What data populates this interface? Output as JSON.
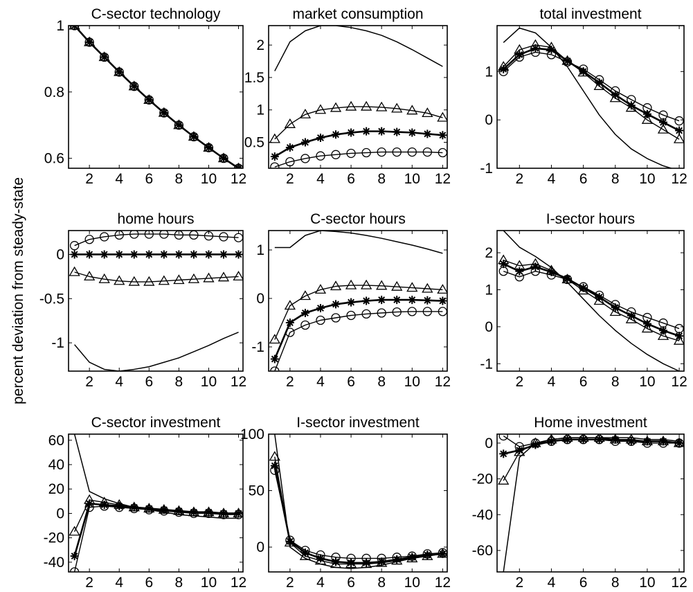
{
  "figure": {
    "ylabel": "percent deviation from steady-state"
  },
  "chart_data": [
    {
      "type": "line",
      "title": "C-sector technology",
      "xlabel": "",
      "ylabel": "",
      "x": [
        1,
        2,
        3,
        4,
        5,
        6,
        7,
        8,
        9,
        10,
        11,
        12
      ],
      "xlim": [
        0.6,
        12.3
      ],
      "ylim": [
        0.57,
        1.0
      ],
      "xticks": [
        2,
        4,
        6,
        8,
        10,
        12
      ],
      "yticks": [
        0.6,
        0.8,
        1
      ],
      "ytick_labels": [
        "0.6",
        "0.8",
        "1"
      ],
      "series": [
        {
          "marker": "none",
          "values": [
            1.0,
            0.95,
            0.905,
            0.86,
            0.817,
            0.776,
            0.737,
            0.7,
            0.665,
            0.632,
            0.6,
            0.57
          ]
        },
        {
          "marker": "star",
          "values": [
            1.0,
            0.95,
            0.905,
            0.86,
            0.817,
            0.776,
            0.737,
            0.7,
            0.665,
            0.632,
            0.6,
            0.57
          ]
        },
        {
          "marker": "circle",
          "values": [
            1.0,
            0.95,
            0.905,
            0.86,
            0.817,
            0.776,
            0.737,
            0.7,
            0.665,
            0.632,
            0.6,
            0.57
          ]
        },
        {
          "marker": "triangle",
          "values": [
            1.0,
            0.95,
            0.905,
            0.86,
            0.817,
            0.776,
            0.737,
            0.7,
            0.665,
            0.632,
            0.6,
            0.57
          ]
        }
      ]
    },
    {
      "type": "line",
      "title": "market consumption",
      "xlabel": "",
      "ylabel": "",
      "x": [
        1,
        2,
        3,
        4,
        5,
        6,
        7,
        8,
        9,
        10,
        11,
        12
      ],
      "xlim": [
        0.6,
        12.3
      ],
      "ylim": [
        0.1,
        2.3
      ],
      "xticks": [
        2,
        4,
        6,
        8,
        10,
        12
      ],
      "yticks": [
        0.5,
        1,
        1.5,
        2
      ],
      "ytick_labels": [
        "0.5",
        "1",
        "1.5",
        "2"
      ],
      "series": [
        {
          "marker": "none",
          "values": [
            1.6,
            2.05,
            2.22,
            2.3,
            2.3,
            2.27,
            2.22,
            2.15,
            2.05,
            1.93,
            1.8,
            1.67
          ]
        },
        {
          "marker": "star",
          "values": [
            0.28,
            0.42,
            0.5,
            0.57,
            0.62,
            0.65,
            0.67,
            0.67,
            0.66,
            0.65,
            0.63,
            0.61
          ]
        },
        {
          "marker": "circle",
          "values": [
            0.12,
            0.2,
            0.25,
            0.29,
            0.31,
            0.33,
            0.34,
            0.35,
            0.35,
            0.35,
            0.35,
            0.34
          ]
        },
        {
          "marker": "triangle",
          "values": [
            0.55,
            0.78,
            0.93,
            1.0,
            1.03,
            1.05,
            1.05,
            1.04,
            1.02,
            0.99,
            0.95,
            0.88
          ]
        }
      ]
    },
    {
      "type": "line",
      "title": "total investment",
      "xlabel": "",
      "ylabel": "",
      "x": [
        1,
        2,
        3,
        4,
        5,
        6,
        7,
        8,
        9,
        10,
        11,
        12
      ],
      "xlim": [
        0.6,
        12.3
      ],
      "ylim": [
        -1.0,
        1.95
      ],
      "xticks": [
        2,
        4,
        6,
        8,
        10,
        12
      ],
      "yticks": [
        -1,
        0,
        1
      ],
      "ytick_labels": [
        "-1",
        "0",
        "1"
      ],
      "series": [
        {
          "marker": "none",
          "values": [
            1.6,
            1.9,
            1.8,
            1.5,
            1.1,
            0.6,
            0.1,
            -0.3,
            -0.6,
            -0.8,
            -0.95,
            -1.05
          ]
        },
        {
          "marker": "star",
          "values": [
            1.05,
            1.35,
            1.48,
            1.45,
            1.22,
            1.0,
            0.77,
            0.52,
            0.3,
            0.12,
            -0.05,
            -0.22
          ]
        },
        {
          "marker": "circle",
          "values": [
            1.0,
            1.3,
            1.4,
            1.35,
            1.2,
            1.05,
            0.83,
            0.6,
            0.42,
            0.25,
            0.1,
            -0.02
          ]
        },
        {
          "marker": "triangle",
          "values": [
            1.1,
            1.45,
            1.55,
            1.5,
            1.22,
            0.98,
            0.7,
            0.45,
            0.25,
            0.0,
            -0.2,
            -0.4
          ]
        }
      ]
    },
    {
      "type": "line",
      "title": "home hours",
      "xlabel": "",
      "ylabel": "",
      "x": [
        1,
        2,
        3,
        4,
        5,
        6,
        7,
        8,
        9,
        10,
        11,
        12
      ],
      "xlim": [
        0.6,
        12.3
      ],
      "ylim": [
        -1.32,
        0.27
      ],
      "xticks": [
        2,
        4,
        6,
        8,
        10,
        12
      ],
      "yticks": [
        -1,
        -0.5,
        0
      ],
      "ytick_labels": [
        "-1",
        "-0.5",
        "0"
      ],
      "series": [
        {
          "marker": "none",
          "values": [
            -1.02,
            -1.22,
            -1.3,
            -1.32,
            -1.3,
            -1.27,
            -1.22,
            -1.17,
            -1.1,
            -1.03,
            -0.95,
            -0.88
          ]
        },
        {
          "marker": "star",
          "values": [
            0,
            0,
            0,
            0,
            0,
            0,
            0,
            0,
            0,
            0,
            0,
            0
          ]
        },
        {
          "marker": "circle",
          "values": [
            0.1,
            0.17,
            0.2,
            0.22,
            0.23,
            0.23,
            0.23,
            0.22,
            0.22,
            0.21,
            0.2,
            0.19
          ]
        },
        {
          "marker": "triangle",
          "values": [
            -0.2,
            -0.25,
            -0.28,
            -0.3,
            -0.31,
            -0.31,
            -0.3,
            -0.29,
            -0.28,
            -0.27,
            -0.26,
            -0.25
          ]
        }
      ]
    },
    {
      "type": "line",
      "title": "C-sector hours",
      "xlabel": "",
      "ylabel": "",
      "x": [
        1,
        2,
        3,
        4,
        5,
        6,
        7,
        8,
        9,
        10,
        11,
        12
      ],
      "xlim": [
        0.6,
        12.3
      ],
      "ylim": [
        -1.5,
        1.4
      ],
      "xticks": [
        2,
        4,
        6,
        8,
        10,
        12
      ],
      "yticks": [
        -1,
        0,
        1
      ],
      "ytick_labels": [
        "-1",
        "0",
        "1"
      ],
      "series": [
        {
          "marker": "none",
          "values": [
            1.05,
            1.05,
            1.3,
            1.4,
            1.38,
            1.35,
            1.3,
            1.24,
            1.17,
            1.1,
            1.02,
            0.93
          ]
        },
        {
          "marker": "star",
          "values": [
            -1.25,
            -0.5,
            -0.3,
            -0.2,
            -0.12,
            -0.08,
            -0.05,
            -0.03,
            -0.03,
            -0.03,
            -0.04,
            -0.05
          ]
        },
        {
          "marker": "circle",
          "values": [
            -1.5,
            -0.7,
            -0.55,
            -0.45,
            -0.4,
            -0.35,
            -0.32,
            -0.3,
            -0.28,
            -0.27,
            -0.27,
            -0.27
          ]
        },
        {
          "marker": "triangle",
          "values": [
            -0.85,
            -0.15,
            0.05,
            0.18,
            0.25,
            0.27,
            0.27,
            0.26,
            0.24,
            0.22,
            0.2,
            0.18
          ]
        }
      ]
    },
    {
      "type": "line",
      "title": "I-sector hours",
      "xlabel": "",
      "ylabel": "",
      "x": [
        1,
        2,
        3,
        4,
        5,
        6,
        7,
        8,
        9,
        10,
        11,
        12
      ],
      "xlim": [
        0.6,
        12.3
      ],
      "ylim": [
        -1.2,
        2.6
      ],
      "xticks": [
        2,
        4,
        6,
        8,
        10,
        12
      ],
      "yticks": [
        -1,
        0,
        1,
        2
      ],
      "ytick_labels": [
        "-1",
        "0",
        "1",
        "2"
      ],
      "series": [
        {
          "marker": "none",
          "values": [
            2.6,
            2.15,
            1.9,
            1.6,
            1.2,
            0.75,
            0.3,
            -0.1,
            -0.45,
            -0.75,
            -1.0,
            -1.2
          ]
        },
        {
          "marker": "star",
          "values": [
            1.7,
            1.5,
            1.62,
            1.48,
            1.3,
            1.05,
            0.8,
            0.52,
            0.3,
            0.08,
            -0.1,
            -0.25
          ]
        },
        {
          "marker": "circle",
          "values": [
            1.5,
            1.35,
            1.5,
            1.4,
            1.28,
            1.08,
            0.85,
            0.6,
            0.4,
            0.25,
            0.1,
            -0.05
          ]
        },
        {
          "marker": "triangle",
          "values": [
            1.8,
            1.65,
            1.7,
            1.52,
            1.28,
            0.98,
            0.7,
            0.4,
            0.2,
            -0.05,
            -0.25,
            -0.38
          ]
        }
      ]
    },
    {
      "type": "line",
      "title": "C-sector investment",
      "xlabel": "",
      "ylabel": "",
      "x": [
        1,
        2,
        3,
        4,
        5,
        6,
        7,
        8,
        9,
        10,
        11,
        12
      ],
      "xlim": [
        0.6,
        12.3
      ],
      "ylim": [
        -48,
        65
      ],
      "xticks": [
        2,
        4,
        6,
        8,
        10,
        12
      ],
      "yticks": [
        -40,
        -20,
        0,
        20,
        40,
        60
      ],
      "ytick_labels": [
        "-40",
        "-20",
        "0",
        "20",
        "40",
        "60"
      ],
      "series": [
        {
          "marker": "none",
          "values": [
            65,
            18,
            12,
            8,
            5,
            3,
            1,
            -1,
            -2,
            -3,
            -4,
            -4
          ]
        },
        {
          "marker": "star",
          "values": [
            -35,
            8,
            7,
            6,
            5,
            4,
            3,
            2,
            1,
            1,
            0,
            0
          ]
        },
        {
          "marker": "circle",
          "values": [
            -48,
            5,
            6,
            5,
            4,
            3,
            2,
            1,
            0,
            0,
            -1,
            -1
          ]
        },
        {
          "marker": "triangle",
          "values": [
            -15,
            11,
            9,
            7,
            5,
            4,
            3,
            2,
            1,
            1,
            0,
            0
          ]
        }
      ]
    },
    {
      "type": "line",
      "title": "I-sector investment",
      "xlabel": "",
      "ylabel": "",
      "x": [
        1,
        2,
        3,
        4,
        5,
        6,
        7,
        8,
        9,
        10,
        11,
        12
      ],
      "xlim": [
        0.6,
        12.3
      ],
      "ylim": [
        -22,
        100
      ],
      "xticks": [
        2,
        4,
        6,
        8,
        10,
        12
      ],
      "yticks": [
        0,
        50,
        100
      ],
      "ytick_labels": [
        "0",
        "50",
        "100"
      ],
      "series": [
        {
          "marker": "none",
          "values": [
            100,
            0,
            -10,
            -15,
            -18,
            -19,
            -18,
            -16,
            -13,
            -10,
            -8,
            -5
          ]
        },
        {
          "marker": "star",
          "values": [
            72,
            5,
            -5,
            -10,
            -13,
            -14,
            -14,
            -13,
            -11,
            -9,
            -7,
            -6
          ]
        },
        {
          "marker": "circle",
          "values": [
            68,
            6,
            -3,
            -7,
            -9,
            -10,
            -10,
            -10,
            -9,
            -8,
            -6,
            -5
          ]
        },
        {
          "marker": "triangle",
          "values": [
            80,
            4,
            -8,
            -12,
            -15,
            -15,
            -15,
            -14,
            -12,
            -10,
            -8,
            -6
          ]
        }
      ]
    },
    {
      "type": "line",
      "title": "Home investment",
      "xlabel": "",
      "ylabel": "",
      "x": [
        1,
        2,
        3,
        4,
        5,
        6,
        7,
        8,
        9,
        10,
        11,
        12
      ],
      "xlim": [
        0.6,
        12.3
      ],
      "ylim": [
        -72,
        5
      ],
      "xticks": [
        2,
        4,
        6,
        8,
        10,
        12
      ],
      "yticks": [
        -60,
        -40,
        -20,
        0
      ],
      "ytick_labels": [
        "-60",
        "-40",
        "-20",
        "0"
      ],
      "series": [
        {
          "marker": "none",
          "values": [
            -72,
            -8,
            0,
            2,
            3,
            3,
            3,
            3,
            3,
            2,
            2,
            1
          ]
        },
        {
          "marker": "star",
          "values": [
            -6,
            -4,
            -1,
            1,
            2,
            2,
            2,
            2,
            1,
            1,
            1,
            0
          ]
        },
        {
          "marker": "circle",
          "values": [
            4,
            -2,
            0,
            1,
            2,
            2,
            2,
            1,
            1,
            0,
            0,
            0
          ]
        },
        {
          "marker": "triangle",
          "values": [
            -21,
            -5,
            0,
            2,
            3,
            3,
            3,
            2,
            2,
            1,
            1,
            0
          ]
        }
      ]
    }
  ]
}
